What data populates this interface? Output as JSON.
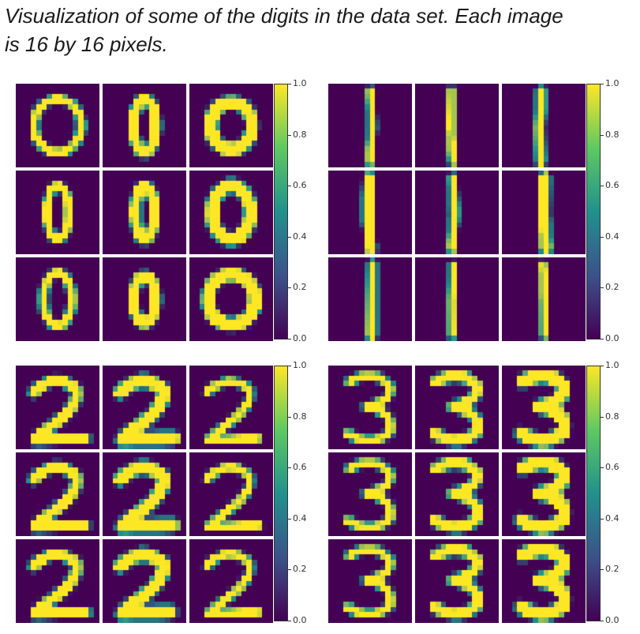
{
  "caption": {
    "line1": "Visualization of some of the digits in the data set. Each image",
    "line2": "is 16 by 16 pixels."
  },
  "colormap": {
    "name": "viridis",
    "background_color": "#440154",
    "mid_color": "#21918c",
    "foreground_color": "#fde725"
  },
  "panels": [
    {
      "digit": "0",
      "grid": "3x3",
      "colorbar_ticks": [
        "1.0",
        "0.8",
        "0.6",
        "0.4",
        "0.2",
        "0.0"
      ]
    },
    {
      "digit": "1",
      "grid": "3x3",
      "colorbar_ticks": [
        "1.0",
        "0.8",
        "0.6",
        "0.4",
        "0.2",
        "0.0"
      ]
    },
    {
      "digit": "2",
      "grid": "3x3",
      "colorbar_ticks": [
        "1.0",
        "0.8",
        "0.6",
        "0.4",
        "0.2",
        "0.0"
      ]
    },
    {
      "digit": "3",
      "grid": "3x3",
      "colorbar_ticks": [
        "1.0",
        "0.8",
        "0.6",
        "0.4",
        "0.2",
        "0.0"
      ]
    }
  ]
}
